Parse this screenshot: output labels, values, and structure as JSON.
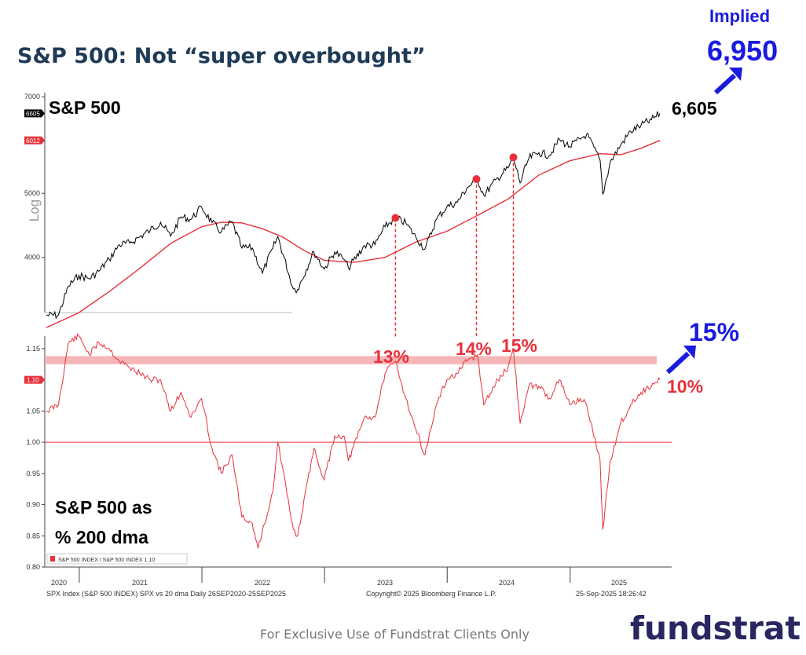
{
  "title": "S&P 500: Not “super overbought”",
  "implied": {
    "label": "Implied",
    "value": "6,950"
  },
  "footer": "For Exclusive Use of Fundstrat Clients Only",
  "logo": "fundstrat",
  "colors": {
    "price": "#000000",
    "ma200": "#e8303a",
    "ratio": "#e8303a",
    "annotation_red": "#e8303a",
    "annotation_blue": "#1a1adf",
    "band": "#f3a9ab"
  },
  "chart_data": [
    {
      "type": "line",
      "title": "S&P 500",
      "ylabel": "Log",
      "y_scale": "log",
      "ylim": [
        3300,
        7100
      ],
      "y_ticks": [
        4000,
        5000,
        6000,
        7000
      ],
      "x_ticks": [
        "2020",
        "2021",
        "2022",
        "2023",
        "2024",
        "2025"
      ],
      "last_value_labels": [
        {
          "text": "6605",
          "series": "S&P 500"
        },
        {
          "text": "6012",
          "series": "200 dma"
        }
      ],
      "end_label": "6,605",
      "series": [
        {
          "name": "S&P 500",
          "color": "#000000",
          "x": [
            "2020-09-25",
            "2020-10-31",
            "2020-11-30",
            "2020-12-31",
            "2021-01-31",
            "2021-02-28",
            "2021-03-31",
            "2021-04-30",
            "2021-05-31",
            "2021-06-30",
            "2021-07-31",
            "2021-08-31",
            "2021-09-30",
            "2021-10-31",
            "2021-11-30",
            "2021-12-31",
            "2022-01-31",
            "2022-02-28",
            "2022-03-31",
            "2022-04-30",
            "2022-05-31",
            "2022-06-30",
            "2022-07-31",
            "2022-08-15",
            "2022-09-30",
            "2022-10-13",
            "2022-11-30",
            "2022-12-31",
            "2023-01-31",
            "2023-02-28",
            "2023-03-13",
            "2023-04-30",
            "2023-05-31",
            "2023-06-30",
            "2023-07-31",
            "2023-08-31",
            "2023-09-30",
            "2023-10-27",
            "2023-11-30",
            "2023-12-31",
            "2024-01-31",
            "2024-02-29",
            "2024-03-31",
            "2024-04-19",
            "2024-05-31",
            "2024-06-30",
            "2024-07-16",
            "2024-08-05",
            "2024-08-31",
            "2024-09-30",
            "2024-10-31",
            "2024-11-30",
            "2024-12-31",
            "2025-01-31",
            "2025-02-19",
            "2025-03-31",
            "2025-04-08",
            "2025-04-30",
            "2025-05-31",
            "2025-06-30",
            "2025-07-31",
            "2025-08-31",
            "2025-09-25"
          ],
          "values": [
            3270,
            3270,
            3620,
            3756,
            3714,
            3811,
            3973,
            4181,
            4204,
            4297,
            4395,
            4522,
            4307,
            4605,
            4567,
            4766,
            4515,
            4373,
            4530,
            4131,
            4132,
            3785,
            4130,
            4297,
            3585,
            3577,
            4080,
            3839,
            4077,
            3970,
            3855,
            4169,
            4180,
            4450,
            4589,
            4508,
            4288,
            4117,
            4568,
            4770,
            4845,
            5096,
            5254,
            4967,
            5277,
            5460,
            5667,
            5186,
            5648,
            5762,
            5705,
            6032,
            5882,
            6040,
            6144,
            5612,
            4982,
            5570,
            5911,
            6205,
            6339,
            6460,
            6605
          ]
        },
        {
          "name": "200 dma",
          "color": "#e8303a",
          "x": [
            "2020-09-25",
            "2020-12-31",
            "2021-03-31",
            "2021-06-30",
            "2021-09-30",
            "2021-12-31",
            "2022-02-28",
            "2022-04-30",
            "2022-06-30",
            "2022-08-31",
            "2022-10-31",
            "2022-12-31",
            "2023-03-31",
            "2023-06-30",
            "2023-09-30",
            "2023-12-31",
            "2024-03-31",
            "2024-06-30",
            "2024-09-30",
            "2024-12-31",
            "2025-03-31",
            "2025-05-31",
            "2025-07-31",
            "2025-09-25"
          ],
          "values": [
            3130,
            3300,
            3550,
            3850,
            4200,
            4450,
            4520,
            4510,
            4420,
            4290,
            4100,
            3960,
            3930,
            4000,
            4220,
            4380,
            4630,
            4900,
            5330,
            5600,
            5740,
            5720,
            5850,
            6012
          ]
        }
      ],
      "annotations": [
        {
          "date": "2023-07-31",
          "value": 4589,
          "label": "13%"
        },
        {
          "date": "2024-03-28",
          "value": 5254,
          "label": "14%"
        },
        {
          "date": "2024-07-16",
          "value": 5667,
          "label": "15%"
        }
      ]
    },
    {
      "type": "line",
      "title": "S&P 500 as\n% 200 dma",
      "ylim": [
        0.8,
        1.17
      ],
      "y_ticks": [
        0.8,
        0.85,
        0.9,
        0.95,
        1.0,
        1.05,
        1.1,
        1.15
      ],
      "y_tick_labels": [
        "0.80",
        "0.85",
        "0.90",
        "0.95",
        "1.00",
        "1.05",
        "1.10",
        "1.15"
      ],
      "x_ticks": [
        "2020",
        "2021",
        "2022",
        "2023",
        "2024",
        "2025"
      ],
      "reference_line": 1.0,
      "band": [
        1.125,
        1.138
      ],
      "last_value_label": "1.10",
      "legend": "S&P 500 INDEX / S&P 500 INDEX 1.10",
      "current_label": "10%",
      "implied_label": "15%",
      "series": [
        {
          "name": "S&P 500 INDEX / S&P 500 INDEX",
          "color": "#e8303a",
          "x": [
            "2020-09-25",
            "2020-10-31",
            "2020-11-30",
            "2020-12-31",
            "2021-01-31",
            "2021-02-28",
            "2021-03-31",
            "2021-04-30",
            "2021-05-31",
            "2021-06-30",
            "2021-07-31",
            "2021-08-31",
            "2021-09-30",
            "2021-10-31",
            "2021-11-30",
            "2021-12-31",
            "2022-01-31",
            "2022-02-28",
            "2022-03-31",
            "2022-04-30",
            "2022-05-31",
            "2022-06-17",
            "2022-07-31",
            "2022-08-15",
            "2022-09-30",
            "2022-10-13",
            "2022-11-30",
            "2022-12-31",
            "2023-01-31",
            "2023-02-28",
            "2023-03-13",
            "2023-04-30",
            "2023-05-31",
            "2023-06-30",
            "2023-07-31",
            "2023-08-31",
            "2023-09-30",
            "2023-10-27",
            "2023-11-30",
            "2023-12-31",
            "2024-01-31",
            "2024-02-29",
            "2024-03-31",
            "2024-04-19",
            "2024-05-31",
            "2024-06-30",
            "2024-07-16",
            "2024-08-05",
            "2024-08-31",
            "2024-09-30",
            "2024-10-31",
            "2024-11-30",
            "2024-12-31",
            "2025-01-31",
            "2025-02-19",
            "2025-03-31",
            "2025-04-08",
            "2025-04-30",
            "2025-05-31",
            "2025-06-30",
            "2025-07-31",
            "2025-08-31",
            "2025-09-25"
          ],
          "values": [
            1.05,
            1.06,
            1.16,
            1.17,
            1.14,
            1.16,
            1.15,
            1.13,
            1.12,
            1.11,
            1.1,
            1.1,
            1.05,
            1.08,
            1.04,
            1.07,
            0.99,
            0.95,
            0.98,
            0.88,
            0.87,
            0.83,
            0.92,
            1.0,
            0.86,
            0.85,
            0.99,
            0.94,
            1.01,
            1.01,
            0.97,
            1.04,
            1.04,
            1.11,
            1.13,
            1.07,
            1.02,
            0.98,
            1.06,
            1.1,
            1.11,
            1.13,
            1.14,
            1.06,
            1.1,
            1.12,
            1.15,
            1.03,
            1.09,
            1.09,
            1.07,
            1.1,
            1.06,
            1.07,
            1.06,
            0.97,
            0.86,
            0.97,
            1.03,
            1.06,
            1.08,
            1.09,
            1.1
          ]
        }
      ]
    }
  ],
  "bloomberg": {
    "left": "SPX Index (S&P 500 INDEX) SPX vs 20 dma  Daily 26SEP2020-25SEP2025",
    "center": "Copyright© 2025 Bloomberg Finance L.P.",
    "right": "25-Sep-2025 18:26:42"
  }
}
